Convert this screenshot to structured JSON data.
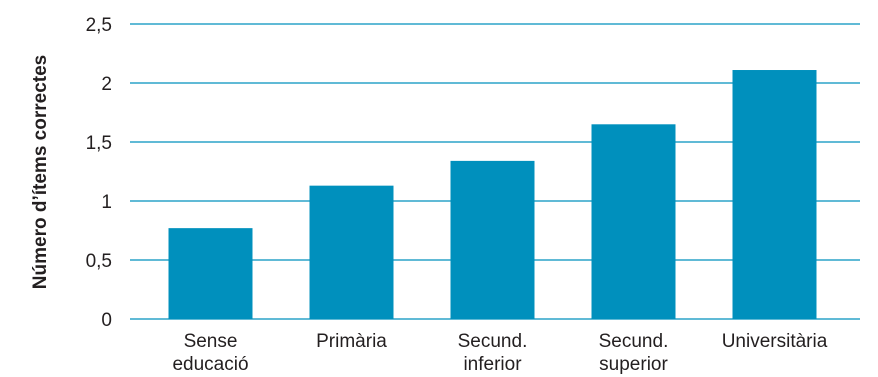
{
  "chart_data": {
    "type": "bar",
    "categories": [
      [
        "Sense",
        "educació"
      ],
      [
        "Primària"
      ],
      [
        "Secund.",
        "inferior"
      ],
      [
        "Secund.",
        "superior"
      ],
      [
        "Universitària"
      ]
    ],
    "values": [
      0.77,
      1.13,
      1.34,
      1.65,
      2.11
    ],
    "title": "",
    "xlabel": "",
    "ylabel": "Número d’ítems correctes",
    "ylim": [
      0,
      2.5
    ],
    "yticks": [
      {
        "value": 0,
        "label": "0"
      },
      {
        "value": 0.5,
        "label": "0,5"
      },
      {
        "value": 1,
        "label": "1"
      },
      {
        "value": 1.5,
        "label": "1,5"
      },
      {
        "value": 2,
        "label": "2"
      },
      {
        "value": 2.5,
        "label": "2,5"
      }
    ],
    "grid": true,
    "legend": "none",
    "colors": {
      "bar": "#0090bd",
      "grid": "#0090bd",
      "text": "#231f20"
    }
  }
}
